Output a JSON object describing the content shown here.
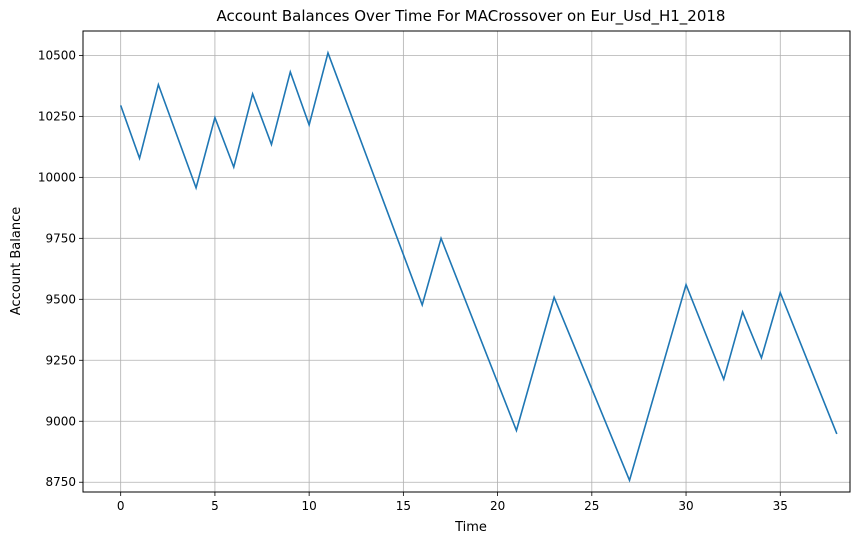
{
  "chart_data": {
    "type": "line",
    "title": "Account Balances Over Time For MACrossover on Eur_Usd_H1_2018",
    "xlabel": "Time",
    "ylabel": "Account Balance",
    "xlim": [
      -2.0,
      38.7
    ],
    "ylim": [
      8710,
      10600
    ],
    "xticks": [
      0,
      5,
      10,
      15,
      20,
      25,
      30,
      35
    ],
    "yticks": [
      8750,
      9000,
      9250,
      9500,
      9750,
      10000,
      10250,
      10500
    ],
    "grid": true,
    "line_color": "#1f77b4",
    "series": [
      {
        "x": [
          0,
          1,
          2,
          4,
          5,
          6,
          7,
          8,
          9,
          10,
          11,
          16,
          17,
          21,
          23,
          27,
          30,
          32,
          33,
          34,
          35,
          38
        ],
        "y": [
          10295,
          10078,
          10380,
          9957,
          10245,
          10042,
          10342,
          10135,
          10432,
          10215,
          10510,
          9477,
          9750,
          8962,
          9508,
          8758,
          9560,
          9172,
          9448,
          9260,
          9527,
          8948
        ]
      }
    ]
  }
}
